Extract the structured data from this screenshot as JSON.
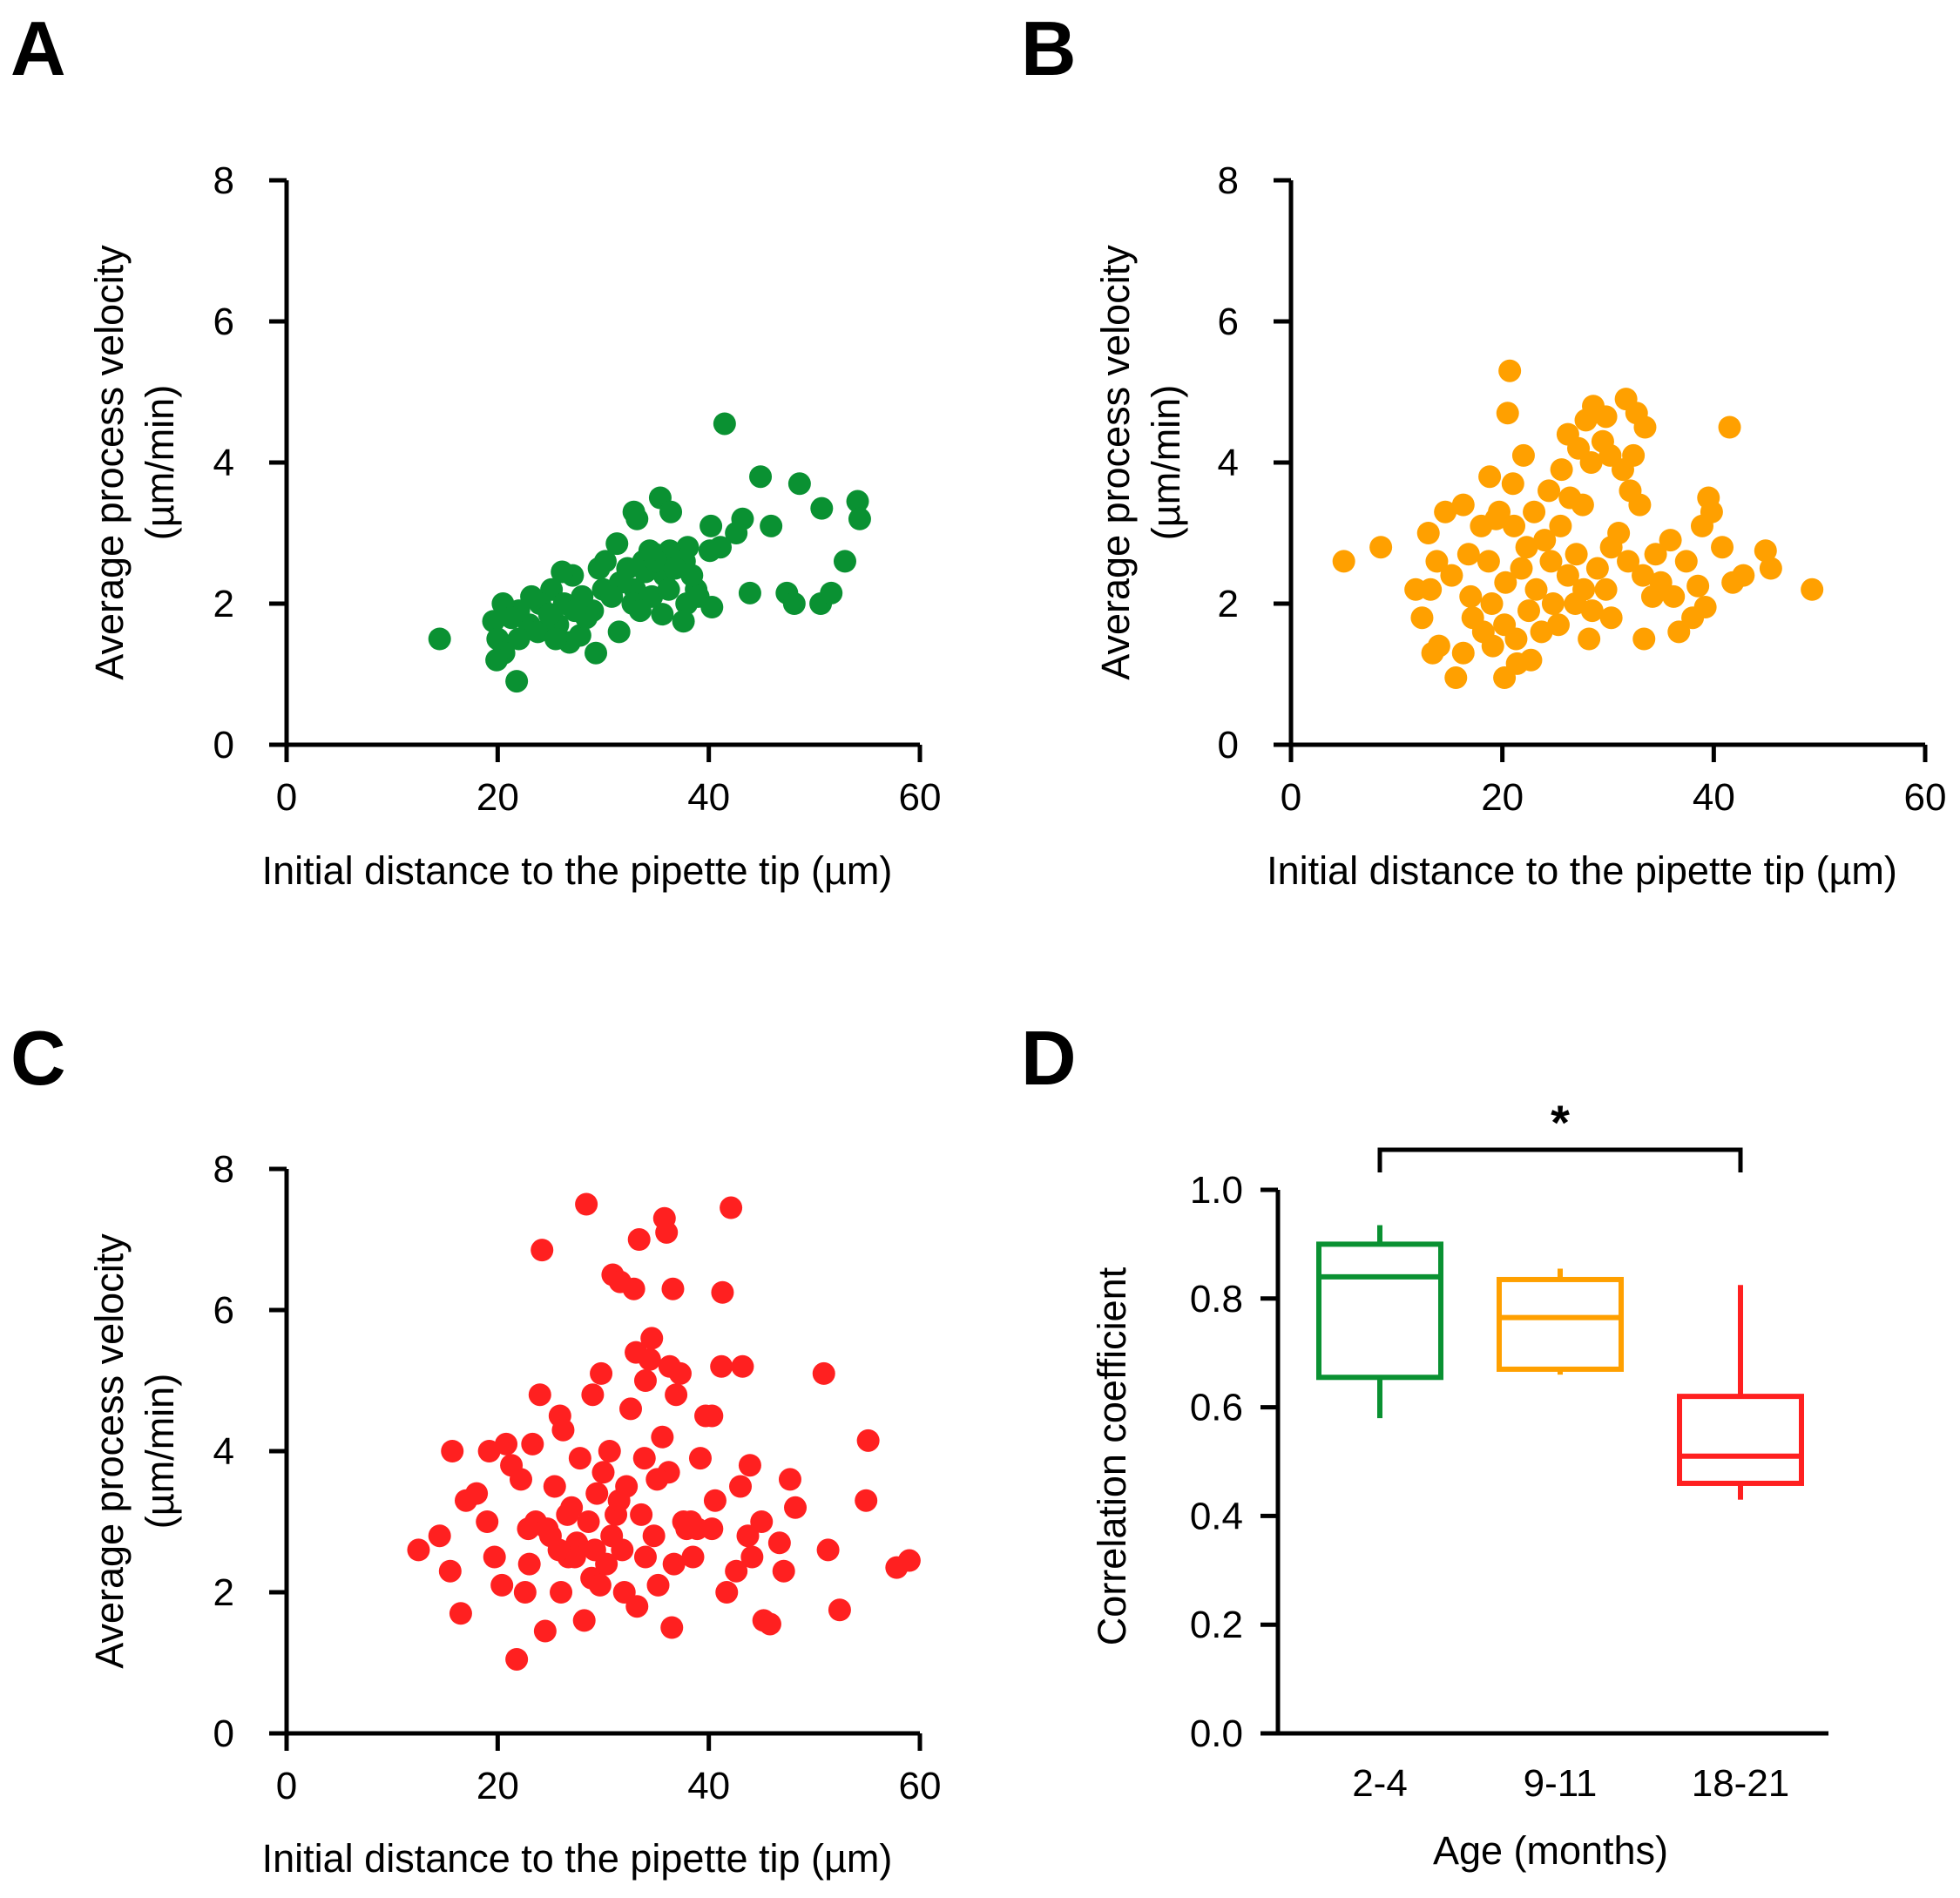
{
  "chart_data": [
    {
      "type": "scatter",
      "panel_label": "A",
      "xlabel": "Initial distance to the pipette tip (µm)",
      "ylabel": [
        "Average process velocity",
        "(µm/min)"
      ],
      "xlim": [
        0,
        60
      ],
      "ylim": [
        0,
        8
      ],
      "xticks": [
        "0",
        "20",
        "40",
        "60"
      ],
      "yticks": [
        "0",
        "2",
        "4",
        "6",
        "8"
      ],
      "color": "#0a9132",
      "points": [
        [
          14.5,
          1.5
        ],
        [
          21.8,
          0.9
        ],
        [
          41.5,
          4.55
        ],
        [
          44.9,
          3.8
        ],
        [
          48.6,
          3.7
        ],
        [
          54.1,
          3.45
        ],
        [
          54.3,
          3.2
        ],
        [
          50.7,
          3.35
        ],
        [
          52.9,
          2.6
        ],
        [
          45.9,
          3.1
        ],
        [
          43.9,
          2.15
        ],
        [
          47.4,
          2.15
        ],
        [
          48.1,
          2.0
        ],
        [
          50.6,
          2.0
        ],
        [
          51.6,
          2.15
        ],
        [
          35.4,
          3.5
        ],
        [
          32.9,
          3.3
        ],
        [
          33.2,
          3.2
        ],
        [
          36.4,
          3.3
        ],
        [
          40.2,
          3.1
        ],
        [
          43.2,
          3.2
        ],
        [
          42.6,
          3.0
        ],
        [
          41.1,
          2.8
        ],
        [
          40.1,
          2.75
        ],
        [
          38.0,
          2.8
        ],
        [
          36.3,
          2.75
        ],
        [
          34.9,
          2.7
        ],
        [
          33.8,
          2.6
        ],
        [
          31.3,
          2.85
        ],
        [
          30.2,
          2.6
        ],
        [
          32.3,
          2.5
        ],
        [
          35.8,
          2.4
        ],
        [
          37.7,
          2.6
        ],
        [
          38.8,
          2.2
        ],
        [
          37.9,
          2.0
        ],
        [
          39.0,
          2.1
        ],
        [
          40.3,
          1.95
        ],
        [
          37.6,
          1.75
        ],
        [
          35.6,
          1.85
        ],
        [
          34.6,
          2.1
        ],
        [
          33.0,
          2.2
        ],
        [
          31.5,
          1.6
        ],
        [
          30.0,
          2.2
        ],
        [
          29.0,
          1.9
        ],
        [
          28.0,
          2.1
        ],
        [
          27.1,
          2.4
        ],
        [
          26.1,
          2.45
        ],
        [
          25.1,
          2.2
        ],
        [
          24.0,
          2.0
        ],
        [
          23.0,
          1.7
        ],
        [
          22.0,
          1.9
        ],
        [
          20.5,
          2.0
        ],
        [
          19.6,
          1.75
        ],
        [
          20.0,
          1.5
        ],
        [
          20.6,
          1.3
        ],
        [
          19.9,
          1.2
        ],
        [
          22.0,
          1.5
        ],
        [
          23.8,
          1.6
        ],
        [
          25.7,
          1.7
        ],
        [
          26.8,
          1.45
        ],
        [
          27.8,
          1.55
        ],
        [
          29.3,
          1.3
        ],
        [
          28.4,
          1.8
        ],
        [
          26.3,
          2.0
        ],
        [
          24.9,
          1.85
        ],
        [
          31.6,
          2.3
        ],
        [
          32.8,
          2.0
        ],
        [
          34.0,
          2.45
        ],
        [
          35.0,
          2.6
        ],
        [
          36.8,
          2.5
        ],
        [
          36.2,
          2.2
        ],
        [
          38.4,
          2.4
        ],
        [
          29.6,
          2.5
        ],
        [
          30.8,
          2.1
        ],
        [
          25.5,
          1.5
        ],
        [
          21.3,
          1.8
        ],
        [
          23.2,
          2.1
        ],
        [
          27.3,
          1.9
        ],
        [
          33.5,
          1.9
        ],
        [
          34.4,
          2.75
        ]
      ]
    },
    {
      "type": "scatter",
      "panel_label": "B",
      "xlabel": "Initial distance to the pipette tip (µm)",
      "ylabel": [
        "Average process velocity",
        "(µm/min)"
      ],
      "xlim": [
        0,
        60
      ],
      "ylim": [
        0,
        8
      ],
      "xticks": [
        "0",
        "20",
        "40",
        "60"
      ],
      "yticks": [
        "0",
        "2",
        "4",
        "6",
        "8"
      ],
      "color": "#ffa000",
      "points": [
        [
          5.0,
          2.6
        ],
        [
          8.5,
          2.8
        ],
        [
          20.7,
          5.3
        ],
        [
          20.5,
          4.7
        ],
        [
          22.0,
          4.1
        ],
        [
          18.8,
          3.8
        ],
        [
          21.0,
          3.7
        ],
        [
          24.4,
          3.6
        ],
        [
          25.6,
          3.9
        ],
        [
          26.2,
          4.4
        ],
        [
          27.9,
          4.6
        ],
        [
          28.6,
          4.8
        ],
        [
          29.8,
          4.65
        ],
        [
          31.7,
          4.9
        ],
        [
          32.7,
          4.7
        ],
        [
          33.5,
          4.5
        ],
        [
          41.5,
          4.5
        ],
        [
          27.2,
          4.2
        ],
        [
          28.4,
          4.0
        ],
        [
          29.5,
          4.3
        ],
        [
          30.2,
          4.1
        ],
        [
          31.4,
          3.9
        ],
        [
          32.4,
          4.1
        ],
        [
          32.1,
          3.6
        ],
        [
          33.0,
          3.4
        ],
        [
          27.6,
          3.4
        ],
        [
          25.5,
          3.1
        ],
        [
          24.0,
          2.9
        ],
        [
          22.3,
          2.8
        ],
        [
          21.1,
          3.1
        ],
        [
          19.4,
          3.2
        ],
        [
          18.0,
          3.1
        ],
        [
          16.3,
          3.4
        ],
        [
          14.6,
          3.3
        ],
        [
          13.0,
          3.0
        ],
        [
          13.8,
          2.6
        ],
        [
          15.2,
          2.4
        ],
        [
          16.8,
          2.7
        ],
        [
          18.7,
          2.6
        ],
        [
          20.3,
          2.3
        ],
        [
          21.8,
          2.5
        ],
        [
          23.2,
          2.2
        ],
        [
          24.6,
          2.6
        ],
        [
          26.2,
          2.4
        ],
        [
          27.7,
          2.2
        ],
        [
          29.0,
          2.5
        ],
        [
          30.3,
          2.8
        ],
        [
          31.9,
          2.6
        ],
        [
          33.3,
          2.4
        ],
        [
          34.5,
          2.7
        ],
        [
          35.9,
          2.9
        ],
        [
          37.4,
          2.6
        ],
        [
          38.9,
          3.1
        ],
        [
          39.8,
          3.3
        ],
        [
          39.5,
          3.5
        ],
        [
          40.8,
          2.8
        ],
        [
          41.8,
          2.3
        ],
        [
          42.8,
          2.4
        ],
        [
          44.9,
          2.75
        ],
        [
          45.4,
          2.5
        ],
        [
          49.3,
          2.2
        ],
        [
          38.5,
          2.25
        ],
        [
          39.2,
          1.95
        ],
        [
          38.0,
          1.8
        ],
        [
          36.7,
          1.6
        ],
        [
          33.4,
          1.5
        ],
        [
          30.3,
          1.8
        ],
        [
          28.5,
          1.9
        ],
        [
          26.9,
          2.0
        ],
        [
          25.3,
          1.7
        ],
        [
          23.7,
          1.6
        ],
        [
          22.5,
          1.9
        ],
        [
          21.3,
          1.5
        ],
        [
          20.2,
          1.7
        ],
        [
          19.1,
          1.4
        ],
        [
          18.2,
          1.6
        ],
        [
          17.2,
          1.8
        ],
        [
          16.3,
          1.3
        ],
        [
          15.6,
          0.95
        ],
        [
          20.2,
          0.95
        ],
        [
          21.4,
          1.15
        ],
        [
          13.4,
          1.3
        ],
        [
          12.4,
          1.8
        ],
        [
          11.8,
          2.2
        ],
        [
          13.2,
          2.2
        ],
        [
          17.0,
          2.1
        ],
        [
          19.0,
          2.0
        ],
        [
          14.0,
          1.4
        ],
        [
          23.0,
          3.3
        ],
        [
          24.8,
          2.0
        ],
        [
          27.0,
          2.7
        ],
        [
          29.8,
          2.2
        ],
        [
          31.0,
          3.0
        ],
        [
          35.0,
          2.3
        ],
        [
          36.2,
          2.1
        ],
        [
          28.2,
          1.5
        ],
        [
          22.7,
          1.2
        ],
        [
          19.7,
          3.3
        ],
        [
          26.4,
          3.5
        ],
        [
          34.2,
          2.1
        ]
      ]
    },
    {
      "type": "scatter",
      "panel_label": "C",
      "xlabel": "Initial distance to the pipette tip (µm)",
      "ylabel": [
        "Average process velocity",
        "(µm/min)"
      ],
      "xlim": [
        0,
        60
      ],
      "ylim": [
        0,
        8
      ],
      "xticks": [
        "0",
        "20",
        "40",
        "60"
      ],
      "yticks": [
        "0",
        "2",
        "4",
        "6",
        "8"
      ],
      "color": "#ff2020",
      "points": [
        [
          12.5,
          2.6
        ],
        [
          14.5,
          2.8
        ],
        [
          15.5,
          2.3
        ],
        [
          15.7,
          4.0
        ],
        [
          16.5,
          1.7
        ],
        [
          17.0,
          3.3
        ],
        [
          18.0,
          3.4
        ],
        [
          19.0,
          3.0
        ],
        [
          19.2,
          4.0
        ],
        [
          19.7,
          2.5
        ],
        [
          20.4,
          2.1
        ],
        [
          20.8,
          4.1
        ],
        [
          21.3,
          3.8
        ],
        [
          21.8,
          1.05
        ],
        [
          22.2,
          3.6
        ],
        [
          22.6,
          2.0
        ],
        [
          23.0,
          2.4
        ],
        [
          23.3,
          4.1
        ],
        [
          23.6,
          3.0
        ],
        [
          24.0,
          4.8
        ],
        [
          24.2,
          6.85
        ],
        [
          24.5,
          1.45
        ],
        [
          25.0,
          2.8
        ],
        [
          25.4,
          3.5
        ],
        [
          25.9,
          4.5
        ],
        [
          26.2,
          4.3
        ],
        [
          26.7,
          2.5
        ],
        [
          27.0,
          3.2
        ],
        [
          27.5,
          2.7
        ],
        [
          27.8,
          3.9
        ],
        [
          28.4,
          7.5
        ],
        [
          28.2,
          1.6
        ],
        [
          28.9,
          2.2
        ],
        [
          29.0,
          4.8
        ],
        [
          29.4,
          3.4
        ],
        [
          29.8,
          5.1
        ],
        [
          30.3,
          2.4
        ],
        [
          30.6,
          4.0
        ],
        [
          30.9,
          6.5
        ],
        [
          31.2,
          3.1
        ],
        [
          31.6,
          6.4
        ],
        [
          31.8,
          2.6
        ],
        [
          32.2,
          3.5
        ],
        [
          32.6,
          4.6
        ],
        [
          32.9,
          6.3
        ],
        [
          33.2,
          1.8
        ],
        [
          33.1,
          5.4
        ],
        [
          33.4,
          7.0
        ],
        [
          33.9,
          3.9
        ],
        [
          34.0,
          5.0
        ],
        [
          34.4,
          5.3
        ],
        [
          34.6,
          5.6
        ],
        [
          35.2,
          2.1
        ],
        [
          35.6,
          4.2
        ],
        [
          35.8,
          7.3
        ],
        [
          36.0,
          7.1
        ],
        [
          36.2,
          3.7
        ],
        [
          36.3,
          5.2
        ],
        [
          36.5,
          1.5
        ],
        [
          36.6,
          6.3
        ],
        [
          36.9,
          4.8
        ],
        [
          37.3,
          5.1
        ],
        [
          37.6,
          3.0
        ],
        [
          38.5,
          2.5
        ],
        [
          38.9,
          2.9
        ],
        [
          39.2,
          3.9
        ],
        [
          39.7,
          4.5
        ],
        [
          40.3,
          4.5
        ],
        [
          40.6,
          3.3
        ],
        [
          40.3,
          2.9
        ],
        [
          41.3,
          6.25
        ],
        [
          41.2,
          5.2
        ],
        [
          41.7,
          2.0
        ],
        [
          42.1,
          7.45
        ],
        [
          42.6,
          2.3
        ],
        [
          43.2,
          5.2
        ],
        [
          43.0,
          3.5
        ],
        [
          43.7,
          2.8
        ],
        [
          43.9,
          3.8
        ],
        [
          44.1,
          2.5
        ],
        [
          45.0,
          3.0
        ],
        [
          45.2,
          1.6
        ],
        [
          45.8,
          1.55
        ],
        [
          46.7,
          2.7
        ],
        [
          47.1,
          2.3
        ],
        [
          47.7,
          3.6
        ],
        [
          48.2,
          3.2
        ],
        [
          50.9,
          5.1
        ],
        [
          51.3,
          2.6
        ],
        [
          52.4,
          1.75
        ],
        [
          54.9,
          3.3
        ],
        [
          55.1,
          4.15
        ],
        [
          57.8,
          2.35
        ],
        [
          59.0,
          2.45
        ],
        [
          26.0,
          2.0
        ],
        [
          27.3,
          2.5
        ],
        [
          29.7,
          2.1
        ],
        [
          30.8,
          2.8
        ],
        [
          31.5,
          3.3
        ],
        [
          32.0,
          2.0
        ],
        [
          33.6,
          3.1
        ],
        [
          34.8,
          2.8
        ],
        [
          35.1,
          3.6
        ],
        [
          37.9,
          2.9
        ],
        [
          38.3,
          3.0
        ],
        [
          24.7,
          2.9
        ],
        [
          22.9,
          2.9
        ],
        [
          28.6,
          3.0
        ],
        [
          30.0,
          3.7
        ],
        [
          26.6,
          3.1
        ],
        [
          25.8,
          2.6
        ],
        [
          34.0,
          2.5
        ],
        [
          36.7,
          2.4
        ],
        [
          29.2,
          2.6
        ]
      ]
    },
    {
      "type": "box",
      "panel_label": "D",
      "xlabel": "Age (months)",
      "ylabel": "Correlation coefficient",
      "ylim": [
        0,
        1.0
      ],
      "yticks": [
        "0.0",
        "0.2",
        "0.4",
        "0.6",
        "0.8",
        "1.0"
      ],
      "categories": [
        "2-4",
        "9-11",
        "18-21"
      ],
      "boxes": [
        {
          "whisker_low": 0.58,
          "q1": 0.655,
          "median": 0.84,
          "q3": 0.9,
          "whisker_high": 0.935,
          "color": "#0a9132"
        },
        {
          "whisker_low": 0.66,
          "q1": 0.67,
          "median": 0.765,
          "q3": 0.835,
          "whisker_high": 0.855,
          "color": "#ffa000"
        },
        {
          "whisker_low": 0.43,
          "q1": 0.46,
          "median": 0.51,
          "q3": 0.62,
          "whisker_high": 0.825,
          "color": "#ff2020"
        }
      ],
      "significance": {
        "from": "2-4",
        "to": "18-21",
        "label": "*"
      }
    }
  ]
}
